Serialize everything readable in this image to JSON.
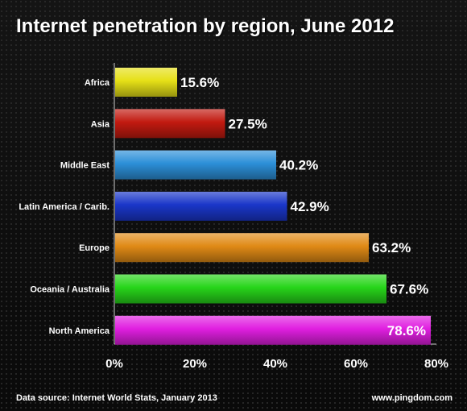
{
  "title": "Internet penetration by region, June 2012",
  "footer": {
    "source": "Data source: Internet World Stats, January 2013",
    "site": "www.pingdom.com"
  },
  "chart_data": {
    "type": "bar",
    "orientation": "horizontal",
    "title": "Internet penetration by region, June 2012",
    "categories": [
      "Africa",
      "Asia",
      "Middle East",
      "Latin America / Carib.",
      "Europe",
      "Oceania / Australia",
      "North America"
    ],
    "values": [
      15.6,
      27.5,
      40.2,
      42.9,
      63.2,
      67.6,
      78.6
    ],
    "value_labels": [
      "15.6%",
      "27.5%",
      "40.2%",
      "42.9%",
      "63.2%",
      "67.6%",
      "78.6%"
    ],
    "colors": [
      "#e6e017",
      "#c21a10",
      "#2c8fd8",
      "#1a36c9",
      "#e08a16",
      "#27d51a",
      "#e01fe0"
    ],
    "xlim": [
      0,
      80
    ],
    "xticks": [
      0,
      20,
      40,
      60,
      80
    ],
    "xtick_labels": [
      "0%",
      "20%",
      "40%",
      "60%",
      "80%"
    ],
    "grid": false,
    "legend": false
  }
}
